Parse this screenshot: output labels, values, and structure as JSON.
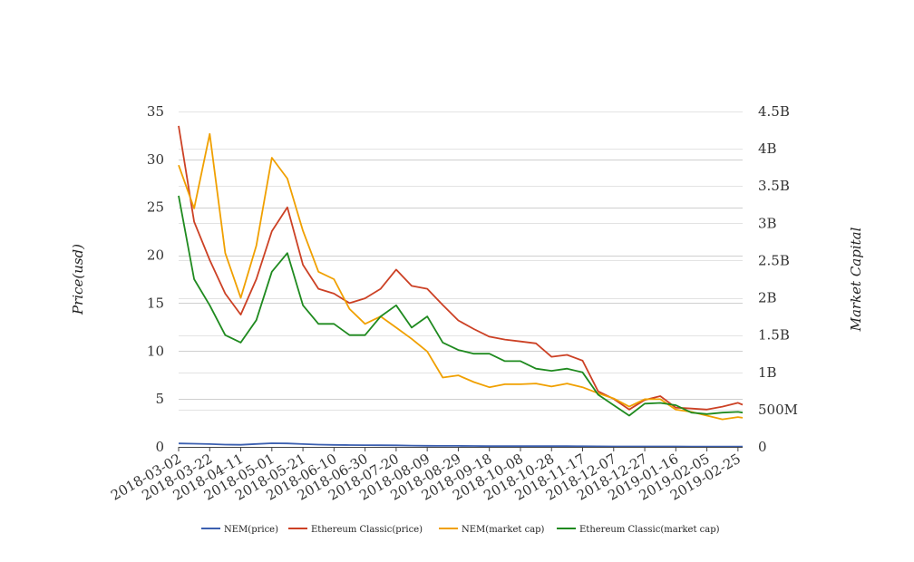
{
  "chart_data": {
    "type": "line",
    "title": "",
    "ylabel": "Price(usd)",
    "y2label": "Market Capital",
    "ylim": [
      0,
      35
    ],
    "y2lim": [
      0,
      4500000000
    ],
    "yticks": [
      "0",
      "5",
      "10",
      "15",
      "20",
      "25",
      "30",
      "35"
    ],
    "y2ticks": [
      "0",
      "500M",
      "1B",
      "1.5B",
      "2B",
      "2.5B",
      "3B",
      "3.5B",
      "4B",
      "4.5B"
    ],
    "xticks": [
      "2018-03-02",
      "2018-03-22",
      "2018-04-11",
      "2018-05-01",
      "2018-05-21",
      "2018-06-10",
      "2018-06-30",
      "2018-07-20",
      "2018-08-09",
      "2018-08-29",
      "2018-09-18",
      "2018-10-08",
      "2018-10-28",
      "2018-11-17",
      "2018-12-07",
      "2018-12-27",
      "2019-01-16",
      "2019-02-05",
      "2019-02-25"
    ],
    "grid": true,
    "legend_position": "bottom",
    "x": [
      "2018-03-02",
      "2018-03-12",
      "2018-03-22",
      "2018-04-01",
      "2018-04-11",
      "2018-04-21",
      "2018-05-01",
      "2018-05-11",
      "2018-05-21",
      "2018-05-31",
      "2018-06-10",
      "2018-06-20",
      "2018-06-30",
      "2018-07-10",
      "2018-07-20",
      "2018-07-30",
      "2018-08-09",
      "2018-08-19",
      "2018-08-29",
      "2018-09-08",
      "2018-09-18",
      "2018-09-28",
      "2018-10-08",
      "2018-10-18",
      "2018-10-28",
      "2018-11-07",
      "2018-11-17",
      "2018-11-27",
      "2018-12-07",
      "2018-12-17",
      "2018-12-27",
      "2019-01-06",
      "2019-01-16",
      "2019-01-26",
      "2019-02-05",
      "2019-02-15",
      "2019-02-25",
      "2019-02-28"
    ],
    "series": [
      {
        "name": "NEM(price)",
        "axis": "left",
        "color": "#3b5fb0",
        "values": [
          0.36,
          0.33,
          0.29,
          0.24,
          0.22,
          0.3,
          0.38,
          0.36,
          0.29,
          0.24,
          0.21,
          0.19,
          0.18,
          0.17,
          0.16,
          0.13,
          0.11,
          0.1,
          0.1,
          0.09,
          0.08,
          0.08,
          0.08,
          0.08,
          0.08,
          0.08,
          0.07,
          0.06,
          0.05,
          0.05,
          0.05,
          0.05,
          0.05,
          0.04,
          0.04,
          0.04,
          0.04,
          0.04
        ]
      },
      {
        "name": "Ethereum Classic(price)",
        "axis": "left",
        "color": "#cc4125",
        "values": [
          33.5,
          23.5,
          19.5,
          16.0,
          13.8,
          17.5,
          22.5,
          25.0,
          19.0,
          16.5,
          16.0,
          15.0,
          15.5,
          16.5,
          18.5,
          16.8,
          16.5,
          14.8,
          13.2,
          12.3,
          11.5,
          11.2,
          11.0,
          10.8,
          9.4,
          9.6,
          9.0,
          5.8,
          5.0,
          3.9,
          4.9,
          5.3,
          4.1,
          4.0,
          3.9,
          4.2,
          4.6,
          4.4
        ]
      },
      {
        "name": "NEM(market cap)",
        "axis": "right",
        "color": "#f0a000",
        "values": [
          3780000000,
          3200000000,
          4200000000,
          2600000000,
          2000000000,
          2700000000,
          3880000000,
          3600000000,
          2900000000,
          2350000000,
          2250000000,
          1850000000,
          1650000000,
          1750000000,
          1600000000,
          1450000000,
          1280000000,
          930000000,
          960000000,
          870000000,
          800000000,
          840000000,
          840000000,
          850000000,
          810000000,
          850000000,
          800000000,
          720000000,
          650000000,
          540000000,
          640000000,
          640000000,
          500000000,
          470000000,
          420000000,
          370000000,
          400000000,
          390000000
        ]
      },
      {
        "name": "Ethereum Classic(market cap)",
        "axis": "right",
        "color": "#1f8a1f",
        "values": [
          3370000000,
          2250000000,
          1900000000,
          1500000000,
          1400000000,
          1700000000,
          2350000000,
          2600000000,
          1900000000,
          1650000000,
          1650000000,
          1500000000,
          1500000000,
          1750000000,
          1900000000,
          1600000000,
          1750000000,
          1400000000,
          1300000000,
          1250000000,
          1250000000,
          1150000000,
          1150000000,
          1050000000,
          1020000000,
          1050000000,
          1000000000,
          700000000,
          560000000,
          420000000,
          580000000,
          590000000,
          560000000,
          460000000,
          440000000,
          460000000,
          470000000,
          460000000
        ]
      }
    ]
  }
}
